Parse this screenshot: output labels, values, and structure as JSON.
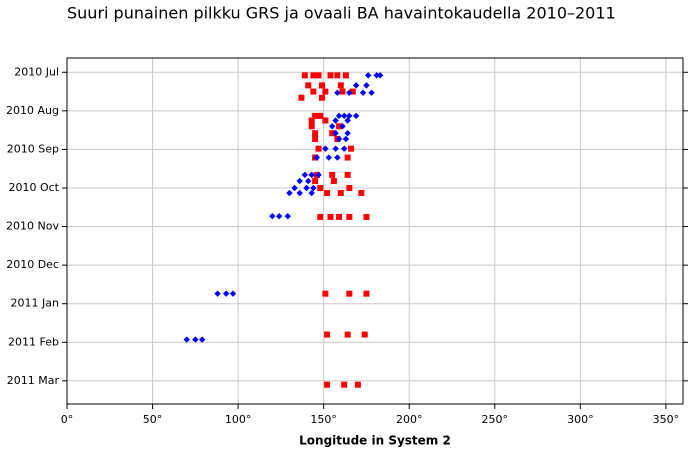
{
  "chart_data": {
    "type": "scatter",
    "title": "Suuri punainen pilkku GRS ja ovaali BA havaintokaudella 2010–2011",
    "xlabel": "Longitude in System 2",
    "xlim": [
      0,
      360
    ],
    "xticks": [
      {
        "value": 0,
        "label": "0°"
      },
      {
        "value": 50,
        "label": "50°"
      },
      {
        "value": 100,
        "label": "100°"
      },
      {
        "value": 150,
        "label": "150°"
      },
      {
        "value": 200,
        "label": "200°"
      },
      {
        "value": 250,
        "label": "250°"
      },
      {
        "value": 300,
        "label": "300°"
      },
      {
        "value": 350,
        "label": "350°"
      }
    ],
    "ylim": [
      15.6,
      6.63
    ],
    "yticks": [
      {
        "value": 7,
        "label": "2010 Jul"
      },
      {
        "value": 8,
        "label": "2010 Aug"
      },
      {
        "value": 9,
        "label": "2010 Sep"
      },
      {
        "value": 10,
        "label": "2010 Oct"
      },
      {
        "value": 11,
        "label": "2010 Nov"
      },
      {
        "value": 12,
        "label": "2010 Dec"
      },
      {
        "value": 13,
        "label": "2011 Jan"
      },
      {
        "value": 14,
        "label": "2011 Feb"
      },
      {
        "value": 15,
        "label": "2011 Mar"
      }
    ],
    "grid": true,
    "series": [
      {
        "color": "#ff0000",
        "marker": "square",
        "x": [
          139,
          144,
          147,
          154,
          158,
          163,
          141,
          149,
          160,
          144,
          151,
          161,
          167,
          137,
          149,
          145,
          148,
          143,
          151,
          143,
          159,
          145,
          155,
          145,
          158,
          147,
          166,
          145,
          164,
          146,
          155,
          164,
          145,
          156,
          148,
          165,
          152,
          160,
          172,
          148,
          154,
          159,
          165,
          175,
          151,
          165,
          175,
          152,
          164,
          174,
          152,
          162,
          170
        ],
        "y": [
          7.08,
          7.08,
          7.08,
          7.08,
          7.08,
          7.08,
          7.34,
          7.34,
          7.34,
          7.5,
          7.5,
          7.5,
          7.5,
          7.66,
          7.66,
          8.13,
          8.13,
          8.25,
          8.25,
          8.4,
          8.4,
          8.58,
          8.58,
          8.73,
          8.73,
          8.98,
          8.98,
          9.21,
          9.21,
          9.66,
          9.66,
          9.66,
          9.82,
          9.82,
          10.0,
          10.0,
          10.13,
          10.13,
          10.13,
          10.75,
          10.75,
          10.75,
          10.75,
          10.75,
          12.74,
          12.74,
          12.74,
          13.8,
          13.8,
          13.8,
          15.1,
          15.1,
          15.1
        ]
      },
      {
        "color": "#0000ff",
        "marker": "diamond",
        "x": [
          176,
          181,
          183,
          169,
          175,
          158,
          165,
          173,
          178,
          159,
          162,
          165,
          169,
          157,
          164,
          155,
          161,
          157,
          164,
          159,
          163,
          151,
          157,
          162,
          146,
          153,
          158,
          139,
          143,
          147,
          136,
          141,
          133,
          140,
          144,
          130,
          136,
          143,
          120,
          124,
          129,
          88,
          93,
          97,
          70,
          75,
          79
        ],
        "y": [
          7.08,
          7.08,
          7.08,
          7.34,
          7.34,
          7.53,
          7.53,
          7.53,
          7.53,
          8.13,
          8.13,
          8.13,
          8.13,
          8.25,
          8.25,
          8.4,
          8.4,
          8.58,
          8.58,
          8.73,
          8.73,
          8.98,
          8.98,
          8.98,
          9.21,
          9.21,
          9.21,
          9.66,
          9.66,
          9.66,
          9.82,
          9.82,
          10.0,
          10.0,
          10.0,
          10.13,
          10.13,
          10.13,
          10.73,
          10.73,
          10.73,
          12.74,
          12.74,
          12.74,
          13.93,
          13.93,
          13.93
        ]
      }
    ]
  }
}
